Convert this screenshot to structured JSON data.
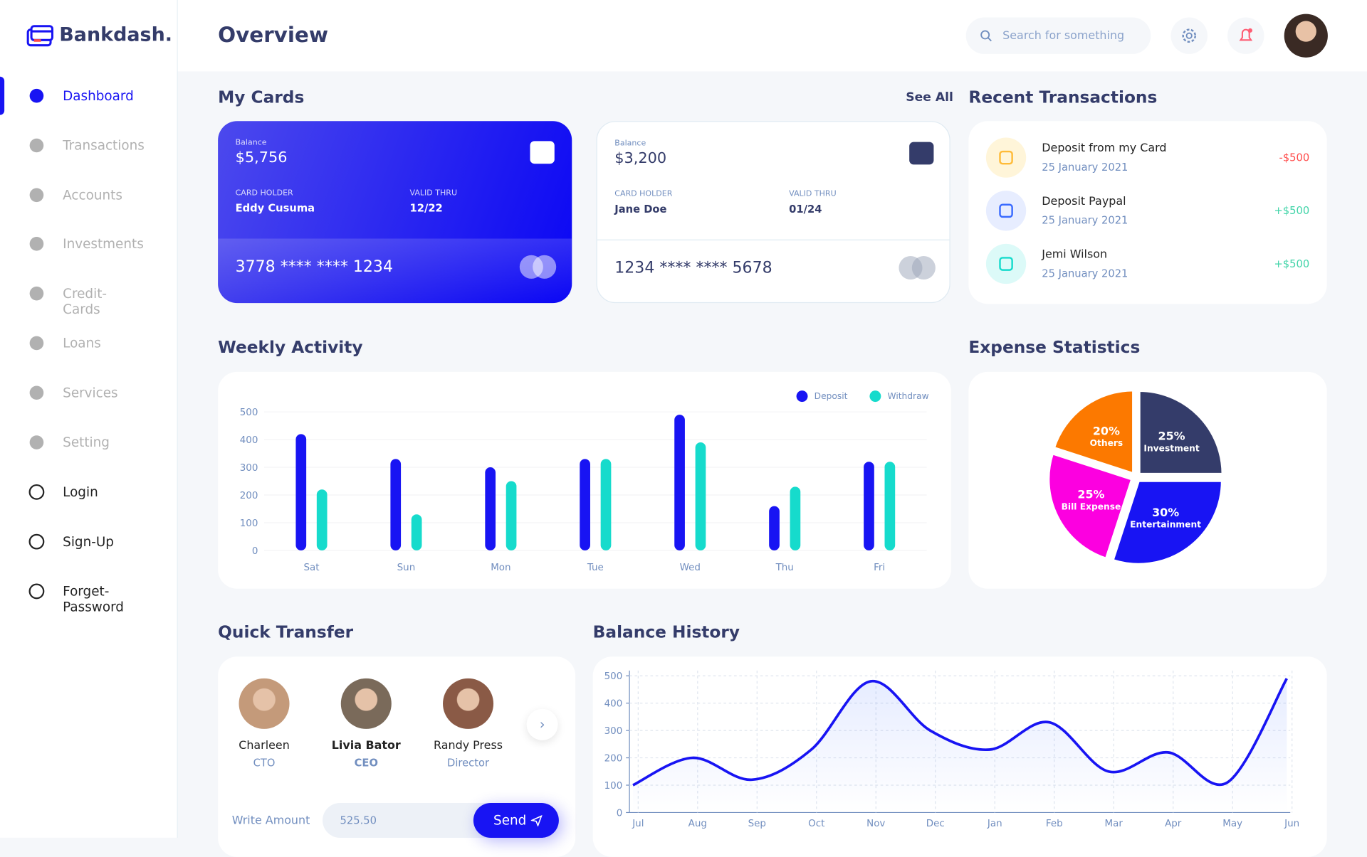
{
  "brand": "Bankdash.",
  "nav": [
    "Dashboard",
    "Transactions",
    "Accounts",
    "Investments",
    "Credit-Cards",
    "Loans",
    "Services",
    "Setting",
    "Login",
    "Sign-Up",
    "Forget-Password"
  ],
  "header": {
    "title": "Overview",
    "search_placeholder": "Search for something"
  },
  "my_cards": {
    "title": "My Cards",
    "see_all": "See All",
    "cards": [
      {
        "balance_label": "Balance",
        "balance": "$5,756",
        "holder_label": "CARD HOLDER",
        "holder": "Eddy Cusuma",
        "valid_label": "VALID THRU",
        "valid": "12/22",
        "number": "3778 **** **** 1234"
      },
      {
        "balance_label": "Balance",
        "balance": "$3,200",
        "holder_label": "CARD HOLDER",
        "holder": "Jane Doe",
        "valid_label": "VALID THRU",
        "valid": "01/24",
        "number": "1234 **** **** 5678"
      }
    ]
  },
  "recent_transactions": {
    "title": "Recent Transactions",
    "items": [
      {
        "title": "Deposit from my Card",
        "date": "25 January 2021",
        "amount": "-$500"
      },
      {
        "title": "Deposit Paypal",
        "date": "25 January 2021",
        "amount": "+$500"
      },
      {
        "title": "Jemi Wilson",
        "date": "25 January 2021",
        "amount": "+$500"
      }
    ]
  },
  "chart_data": [
    {
      "type": "bar",
      "title": "Weekly Activity",
      "categories": [
        "Sat",
        "Sun",
        "Mon",
        "Tue",
        "Wed",
        "Thu",
        "Fri"
      ],
      "series": [
        {
          "name": "Deposit",
          "color": "#1814F3",
          "values": [
            420,
            330,
            300,
            330,
            490,
            160,
            320
          ]
        },
        {
          "name": "Withdraw",
          "color": "#16DBCC",
          "values": [
            220,
            130,
            250,
            330,
            390,
            230,
            320
          ]
        }
      ],
      "ylim": [
        0,
        500
      ],
      "yticks": [
        0,
        100,
        200,
        300,
        400,
        500
      ],
      "grid": true,
      "legend": "top-right"
    },
    {
      "type": "pie",
      "title": "Expense Statistics",
      "categories": [
        "Investment",
        "Entertainment",
        "Bill Expense",
        "Others"
      ],
      "values": [
        25,
        30,
        25,
        20
      ],
      "value_labels": [
        "25%",
        "30%",
        "25%",
        "20%"
      ],
      "colors": [
        "#343C6A",
        "#1814F3",
        "#FC00E0",
        "#FC7900"
      ]
    },
    {
      "type": "line",
      "title": "Balance History",
      "categories": [
        "Jul",
        "Aug",
        "Sep",
        "Oct",
        "Nov",
        "Dec",
        "Jan",
        "Feb",
        "Mar",
        "Apr",
        "May",
        "Jun"
      ],
      "values": [
        100,
        200,
        120,
        230,
        480,
        300,
        230,
        330,
        150,
        220,
        110,
        490
      ],
      "color": "#1814F3",
      "ylim": [
        0,
        500
      ],
      "yticks": [
        0,
        100,
        200,
        300,
        400,
        500
      ],
      "grid": true
    }
  ],
  "quick_transfer": {
    "title": "Quick Transfer",
    "people": [
      {
        "name": "Charleen",
        "role": "CTO"
      },
      {
        "name": "Livia Bator",
        "role": "CEO"
      },
      {
        "name": "Randy Press",
        "role": "Director"
      }
    ],
    "amount_label": "Write Amount",
    "amount": "525.50",
    "send": "Send"
  }
}
